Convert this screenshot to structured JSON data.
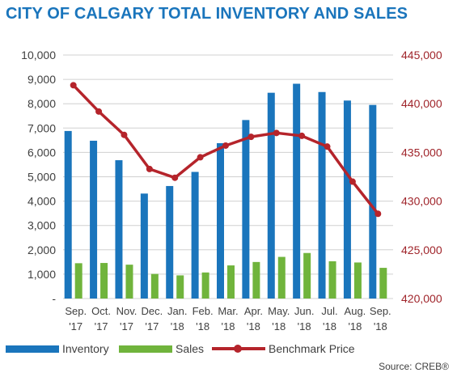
{
  "chart_data": {
    "type": "bar",
    "title": "CITY OF CALGARY TOTAL INVENTORY AND SALES",
    "categories": [
      "Sep. '17",
      "Oct. '17",
      "Nov. '17",
      "Dec. '17",
      "Jan. '18",
      "Feb. '18",
      "Mar. '18",
      "Apr. '18",
      "May. '18",
      "Jun. '18",
      "Jul. '18",
      "Aug. '18",
      "Sep. '18"
    ],
    "category_lines": [
      [
        "Sep.",
        "'17"
      ],
      [
        "Oct.",
        "'17"
      ],
      [
        "Nov.",
        "'17"
      ],
      [
        "Dec.",
        "'17"
      ],
      [
        "Jan.",
        "'18"
      ],
      [
        "Feb.",
        "'18"
      ],
      [
        "Mar.",
        "'18"
      ],
      [
        "Apr.",
        "'18"
      ],
      [
        "May.",
        "'18"
      ],
      [
        "Jun.",
        "'18"
      ],
      [
        "Jul.",
        "'18"
      ],
      [
        "Aug.",
        "'18"
      ],
      [
        "Sep.",
        "'18"
      ]
    ],
    "series": [
      {
        "name": "Inventory",
        "type": "bar",
        "axis": "left",
        "color": "#1a75bc",
        "values": [
          6880,
          6480,
          5680,
          4310,
          4620,
          5200,
          6380,
          7330,
          8450,
          8820,
          8480,
          8130,
          7950
        ]
      },
      {
        "name": "Sales",
        "type": "bar",
        "axis": "left",
        "color": "#70b43c",
        "values": [
          1450,
          1460,
          1390,
          1010,
          950,
          1070,
          1360,
          1500,
          1710,
          1870,
          1530,
          1480,
          1260
        ]
      },
      {
        "name": "Benchmark Price",
        "type": "line",
        "axis": "right",
        "color": "#b5242b",
        "values": [
          441900,
          439200,
          436800,
          433300,
          432400,
          434500,
          435700,
          436600,
          437000,
          436700,
          435600,
          432000,
          428700
        ]
      }
    ],
    "y_left": {
      "ylim": [
        0,
        10000
      ],
      "ticks": [
        0,
        1000,
        2000,
        3000,
        4000,
        5000,
        6000,
        7000,
        8000,
        9000,
        10000
      ],
      "tick_labels": [
        "-",
        "1,000",
        "2,000",
        "3,000",
        "4,000",
        "5,000",
        "6,000",
        "7,000",
        "8,000",
        "9,000",
        "10,000"
      ]
    },
    "y_right": {
      "ylim": [
        420000,
        445000
      ],
      "ticks": [
        420000,
        425000,
        430000,
        435000,
        440000,
        445000
      ],
      "tick_labels": [
        "420,000",
        "425,000",
        "430,000",
        "435,000",
        "440,000",
        "445,000"
      ]
    },
    "grid": true,
    "legend": {
      "placement": "bottom",
      "items": [
        "Inventory",
        "Sales",
        "Benchmark Price"
      ]
    },
    "source": "Source: CREB®"
  }
}
